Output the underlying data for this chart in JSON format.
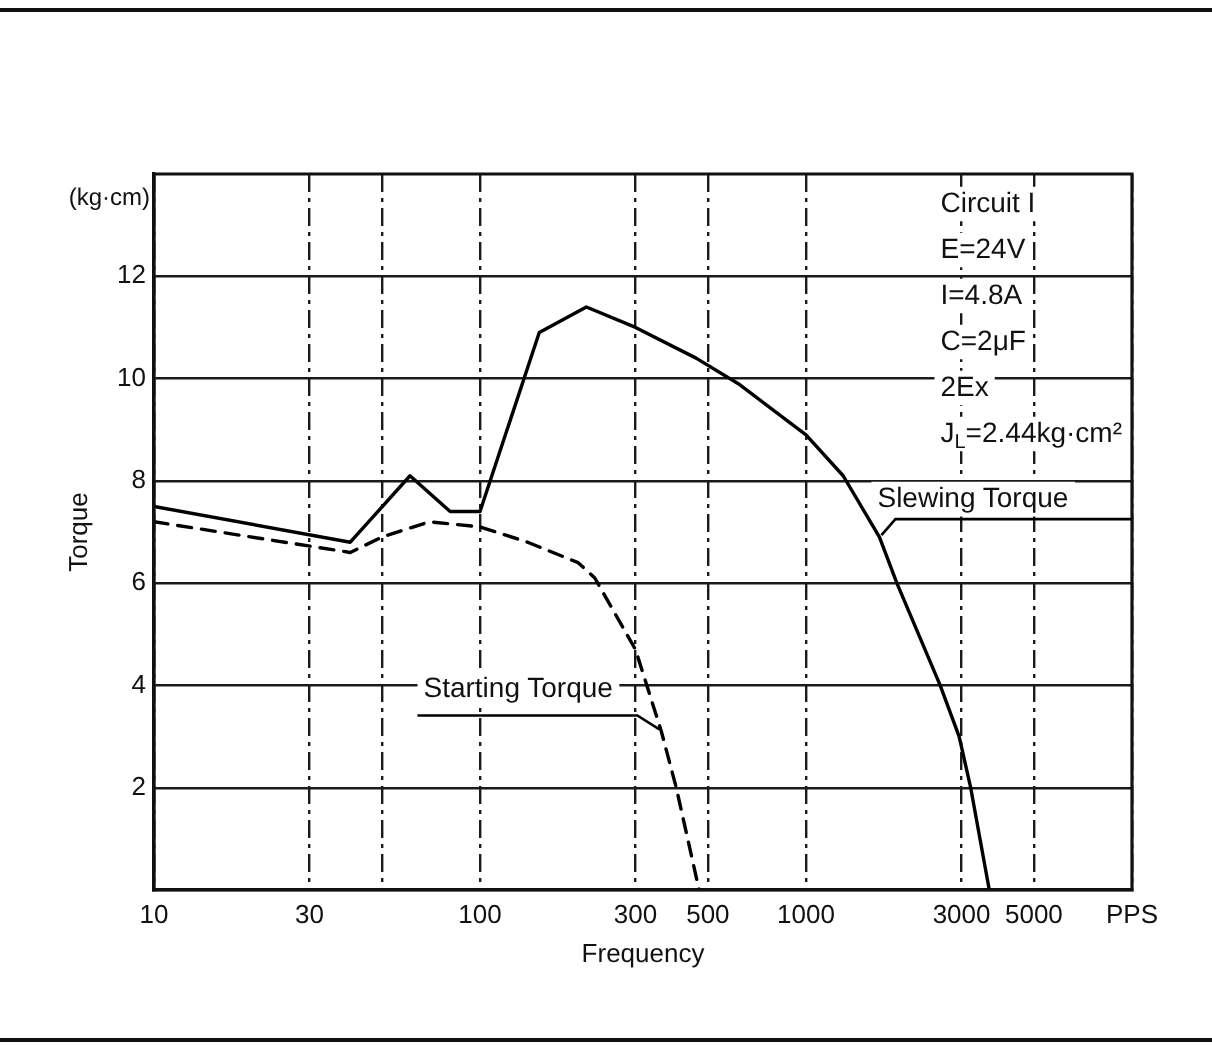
{
  "chart_data": {
    "type": "line",
    "xlabel": "Frequency",
    "ylabel": "Torque",
    "log": "x",
    "xlim": [
      10,
      10000
    ],
    "ylim": [
      0,
      14
    ],
    "xticks": [
      10,
      30,
      {
        "value": 50,
        "label": null
      },
      100,
      300,
      500,
      1000,
      3000,
      5000,
      {
        "value": 10000,
        "label": "PPS"
      }
    ],
    "yticks": [
      2,
      4,
      6,
      8,
      10,
      12
    ],
    "grid": true,
    "legend": false,
    "marker": "none",
    "annotations": [
      "(kg·cm)",
      "Circuit I",
      "E=24V",
      "I=4.8A",
      "C=2μF",
      "2Ex",
      "J$_{L}$=2.44kg·cm²"
    ],
    "series": [
      {
        "name": "Slewing Torque",
        "color": "#000000",
        "line_style": "solid",
        "x": [
          10,
          40,
          61,
          81,
          100,
          152,
          212,
          300,
          460,
          620,
          1000,
          1300,
          1680,
          1900,
          2580,
          2950,
          3200,
          3650
        ],
        "values": [
          7.5,
          6.8,
          8.1,
          7.4,
          7.4,
          10.9,
          11.4,
          11.0,
          10.4,
          9.9,
          8.9,
          8.1,
          6.9,
          6.0,
          4.0,
          3.0,
          2.0,
          0
        ]
      },
      {
        "name": "Starting Torque",
        "color": "#000000",
        "line_style": "dashed",
        "x": [
          10,
          40,
          50,
          70,
          100,
          140,
          200,
          225,
          300,
          360,
          400,
          470
        ],
        "values": [
          7.2,
          6.6,
          6.9,
          7.2,
          7.1,
          6.8,
          6.4,
          6.1,
          4.7,
          3.1,
          2.0,
          0
        ]
      }
    ]
  }
}
